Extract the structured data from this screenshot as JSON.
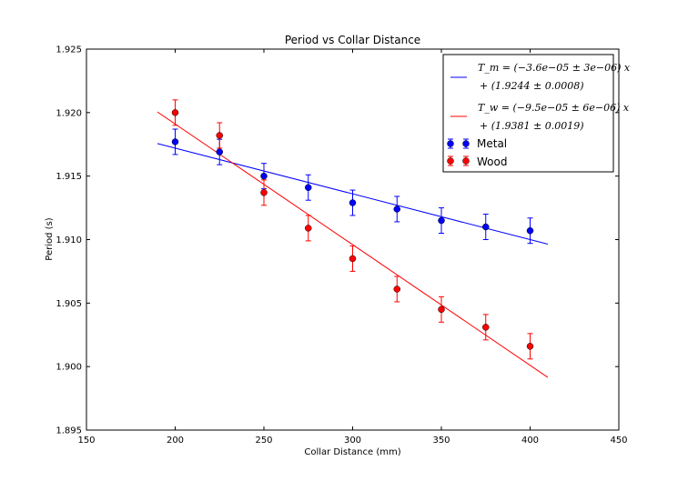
{
  "chart_data": {
    "type": "scatter",
    "title": "Period vs Collar Distance",
    "xlabel": "Collar Distance (mm)",
    "ylabel": "Period (s)",
    "xlim": [
      150,
      450
    ],
    "ylim": [
      1.895,
      1.925
    ],
    "xticks": [
      "150",
      "200",
      "250",
      "300",
      "350",
      "400",
      "450"
    ],
    "yticks": [
      "1.895",
      "1.900",
      "1.905",
      "1.910",
      "1.915",
      "1.920",
      "1.925"
    ],
    "grid": false,
    "legend_position": "top-right",
    "series": [
      {
        "name": "Metal",
        "color": "#0000ff",
        "x": [
          200,
          225,
          250,
          275,
          300,
          325,
          350,
          375,
          400
        ],
        "y": [
          1.9177,
          1.9169,
          1.915,
          1.9141,
          1.9129,
          1.9124,
          1.9115,
          1.911,
          1.9107
        ],
        "yerr": [
          0.001,
          0.001,
          0.001,
          0.001,
          0.001,
          0.001,
          0.001,
          0.001,
          0.001
        ]
      },
      {
        "name": "Wood",
        "color": "#ff0000",
        "x": [
          200,
          225,
          250,
          275,
          300,
          325,
          350,
          375,
          400
        ],
        "y": [
          1.92,
          1.9182,
          1.9137,
          1.9109,
          1.9085,
          1.9061,
          1.9045,
          1.9031,
          1.9016
        ],
        "yerr": [
          0.001,
          0.001,
          0.001,
          0.001,
          0.001,
          0.001,
          0.001,
          0.001,
          0.001
        ]
      }
    ],
    "fits": [
      {
        "name": "T_m",
        "color": "#0000ff",
        "slope": -3.6e-05,
        "intercept": 1.9244,
        "x_range": [
          190,
          410
        ],
        "legend_line1": "T_m = (−3.6e−05 ± 3e−06) x",
        "legend_line2": "+ (1.9244 ± 0.0008)"
      },
      {
        "name": "T_w",
        "color": "#ff0000",
        "slope": -9.5e-05,
        "intercept": 1.9381,
        "x_range": [
          190,
          410
        ],
        "legend_line1": "T_w = (−9.5e−05 ± 6e−06) x",
        "legend_line2": "+ (1.9381 ± 0.0019)"
      }
    ]
  }
}
